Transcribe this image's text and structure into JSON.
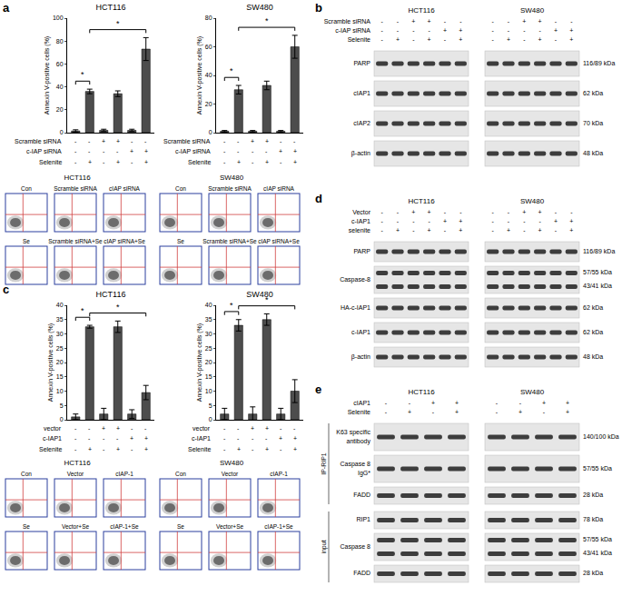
{
  "panel_labels": [
    "a",
    "b",
    "c",
    "d",
    "e"
  ],
  "chart_data": [
    {
      "type": "bar",
      "title": "HCT116",
      "ylabel": "Annexin V-positive cells (%)",
      "categories": [
        null,
        null,
        null,
        null,
        null,
        null
      ],
      "values": [
        1.5,
        36,
        2,
        34,
        2,
        73
      ],
      "errors": [
        1,
        2,
        1,
        2.5,
        1,
        10
      ],
      "color": "#4d4d4d",
      "ylim": [
        0,
        100
      ],
      "yticks": [
        0,
        20,
        40,
        60,
        80,
        100
      ],
      "grid": false,
      "conditions": [
        {
          "label": "Scramble siRNA",
          "signs": [
            "-",
            "-",
            "+",
            "+",
            "-",
            "-"
          ]
        },
        {
          "label": "c-IAP siRNA",
          "signs": [
            "-",
            "-",
            "-",
            "-",
            "+",
            "+"
          ]
        },
        {
          "label": "Selenite",
          "signs": [
            "-",
            "+",
            "-",
            "+",
            "-",
            "+"
          ]
        }
      ],
      "significance": [
        {
          "from": 0,
          "to": 1,
          "label": "*"
        },
        {
          "from": 1,
          "to": 5,
          "label": "*"
        }
      ]
    },
    {
      "type": "bar",
      "title": "SW480",
      "ylabel": "Annexin V-positive cells (%)",
      "categories": [
        null,
        null,
        null,
        null,
        null,
        null
      ],
      "values": [
        1,
        30,
        1,
        33,
        1,
        60
      ],
      "errors": [
        0.5,
        3,
        0.5,
        3,
        0.5,
        8
      ],
      "color": "#4d4d4d",
      "ylim": [
        0,
        80
      ],
      "yticks": [
        0,
        20,
        40,
        60,
        80
      ],
      "grid": false,
      "conditions": [
        {
          "label": "Scramble siRNA",
          "signs": [
            "-",
            "-",
            "+",
            "+",
            "-",
            "-"
          ]
        },
        {
          "label": "c-IAP siRNA",
          "signs": [
            "-",
            "-",
            "-",
            "-",
            "+",
            "+"
          ]
        },
        {
          "label": "Selenite",
          "signs": [
            "-",
            "+",
            "-",
            "+",
            "-",
            "+"
          ]
        }
      ],
      "significance": [
        {
          "from": 0,
          "to": 1,
          "label": "*"
        },
        {
          "from": 1,
          "to": 5,
          "label": "*"
        }
      ]
    },
    {
      "type": "bar",
      "title": "HCT116",
      "ylabel": "Annexin V-positive cells (%)",
      "categories": [
        null,
        null,
        null,
        null,
        null,
        null
      ],
      "values": [
        1,
        32.5,
        2,
        32.5,
        2,
        9.5
      ],
      "errors": [
        1,
        0.5,
        2,
        2,
        1.5,
        2.5
      ],
      "color": "#4d4d4d",
      "ylim": [
        0,
        40
      ],
      "yticks": [
        0,
        5,
        10,
        15,
        20,
        25,
        30,
        35,
        40
      ],
      "grid": false,
      "conditions": [
        {
          "label": "vector",
          "signs": [
            "-",
            "-",
            "+",
            "+",
            "-",
            "-"
          ]
        },
        {
          "label": "c-IAP1",
          "signs": [
            "-",
            "-",
            "-",
            "-",
            "+",
            "+"
          ]
        },
        {
          "label": "Selenite",
          "signs": [
            "-",
            "+",
            "-",
            "+",
            "-",
            "+"
          ]
        }
      ],
      "significance": [
        {
          "from": 0,
          "to": 1,
          "label": "*"
        },
        {
          "from": 1,
          "to": 5,
          "label": "*"
        }
      ]
    },
    {
      "type": "bar",
      "title": "SW480",
      "ylabel": "Annexin V-positive cells (%)",
      "categories": [
        null,
        null,
        null,
        null,
        null,
        null
      ],
      "values": [
        2,
        33,
        2,
        35,
        2,
        10
      ],
      "errors": [
        2,
        2,
        2.5,
        2,
        2,
        4
      ],
      "color": "#4d4d4d",
      "ylim": [
        0,
        40
      ],
      "yticks": [
        0,
        5,
        10,
        15,
        20,
        25,
        30,
        35,
        40
      ],
      "grid": false,
      "conditions": [
        {
          "label": "vector",
          "signs": [
            "-",
            "-",
            "+",
            "+",
            "-",
            "-"
          ]
        },
        {
          "label": "c-IAP1",
          "signs": [
            "-",
            "-",
            "-",
            "-",
            "+",
            "+"
          ]
        },
        {
          "label": "Selenite",
          "signs": [
            "-",
            "+",
            "-",
            "+",
            "-",
            "+"
          ]
        }
      ],
      "significance": [
        {
          "from": 0,
          "to": 1,
          "label": "*"
        },
        {
          "from": 1,
          "to": 5,
          "label": "*"
        }
      ]
    }
  ],
  "flow_panels": [
    {
      "cell_lines": [
        "HCT116",
        "SW480"
      ],
      "rows": [
        [
          "Con",
          "Scramble siRNA",
          "cIAP siRNA"
        ],
        [
          "Se",
          "Scramble siRNA+Se",
          "cIAP siRNA+Se"
        ]
      ]
    },
    {
      "cell_lines": [
        "HCT116",
        "SW480"
      ],
      "rows": [
        [
          "Con",
          "Vector",
          "cIAP-1"
        ],
        [
          "Se",
          "Vector+Se",
          "cIAP-1+Se"
        ]
      ]
    }
  ],
  "blots": [
    {
      "cell_lines": [
        "HCT116",
        "SW480"
      ],
      "conditions": [
        {
          "label": "Scramble siRNA",
          "signs": [
            [
              "-",
              "-",
              "+",
              "+",
              "-",
              "-"
            ],
            [
              "-",
              "-",
              "+",
              "+",
              "-",
              "-"
            ]
          ]
        },
        {
          "label": "c-IAP siRNA",
          "signs": [
            [
              "-",
              "-",
              "-",
              "-",
              "+",
              "+"
            ],
            [
              "-",
              "-",
              "-",
              "-",
              "+",
              "+"
            ]
          ]
        },
        {
          "label": "Selenite",
          "signs": [
            [
              "-",
              "+",
              "-",
              "+",
              "-",
              "+"
            ],
            [
              "-",
              "+",
              "-",
              "+",
              "-",
              "+"
            ]
          ]
        }
      ],
      "rows": [
        {
          "label": [
            "PARP"
          ],
          "kda": [
            "116/89 kDa"
          ]
        },
        {
          "label": [
            "cIAP1"
          ],
          "kda": [
            "62 kDa"
          ]
        },
        {
          "label": [
            "cIAP2"
          ],
          "kda": [
            "70 kDa"
          ]
        },
        {
          "label": [
            "β-actin"
          ],
          "kda": [
            "48 kDa"
          ]
        }
      ]
    },
    {
      "cell_lines": [
        "HCT116",
        "SW480"
      ],
      "conditions": [
        {
          "label": "Vector",
          "signs": [
            [
              "-",
              "-",
              "+",
              "+",
              "-",
              "-"
            ],
            [
              "-",
              "-",
              "+",
              "+",
              "-",
              "-"
            ]
          ]
        },
        {
          "label": "c-IAP1",
          "signs": [
            [
              "-",
              "-",
              "-",
              "-",
              "+",
              "+"
            ],
            [
              "-",
              "-",
              "-",
              "-",
              "+",
              "+"
            ]
          ]
        },
        {
          "label": "selenite",
          "signs": [
            [
              "-",
              "+",
              "-",
              "+",
              "-",
              "+"
            ],
            [
              "-",
              "+",
              "-",
              "+",
              "-",
              "+"
            ]
          ]
        }
      ],
      "rows": [
        {
          "label": [
            "PARP"
          ],
          "kda": [
            "116/89 kDa"
          ]
        },
        {
          "label": [
            "Caspase-8"
          ],
          "kda": [
            "57/55 kDa",
            "43/41 kDa"
          ]
        },
        {
          "label": [
            "HA-c-IAP1"
          ],
          "kda": [
            "62 kDa"
          ]
        },
        {
          "label": [
            "c-IAP1"
          ],
          "kda": [
            "62 kDa"
          ]
        },
        {
          "label": [
            "β-actin"
          ],
          "kda": [
            "48 kDa"
          ]
        }
      ]
    },
    {
      "cell_lines": [
        "HCT116",
        "SW480"
      ],
      "conditions": [
        {
          "label": "cIAP1",
          "signs": [
            [
              "-",
              "-",
              "+",
              "+"
            ],
            [
              "-",
              "-",
              "+",
              "+"
            ]
          ]
        },
        {
          "label": "Selenite",
          "signs": [
            [
              "-",
              "+",
              "-",
              "+"
            ],
            [
              "-",
              "+",
              "-",
              "+"
            ]
          ]
        }
      ],
      "groups": [
        {
          "label": "IP-RIP1",
          "rows": [
            {
              "label": [
                "K63 specific",
                "antibody"
              ],
              "kda": [
                "140/100 kDa"
              ]
            },
            {
              "label": [
                "Caspase 8",
                "IgG*"
              ],
              "kda": [
                "57/55 kDa"
              ]
            },
            {
              "label": [
                "FADD"
              ],
              "kda": [
                "28 kDa"
              ]
            }
          ]
        },
        {
          "label": "input",
          "rows": [
            {
              "label": [
                "RIP1"
              ],
              "kda": [
                "78 kDa"
              ]
            },
            {
              "label": [
                "Caspase 8"
              ],
              "kda": [
                "57/55 kDa",
                "43/41 kDa"
              ]
            },
            {
              "label": [
                "FADD"
              ],
              "kda": [
                "28 kDa"
              ]
            }
          ]
        }
      ]
    }
  ]
}
